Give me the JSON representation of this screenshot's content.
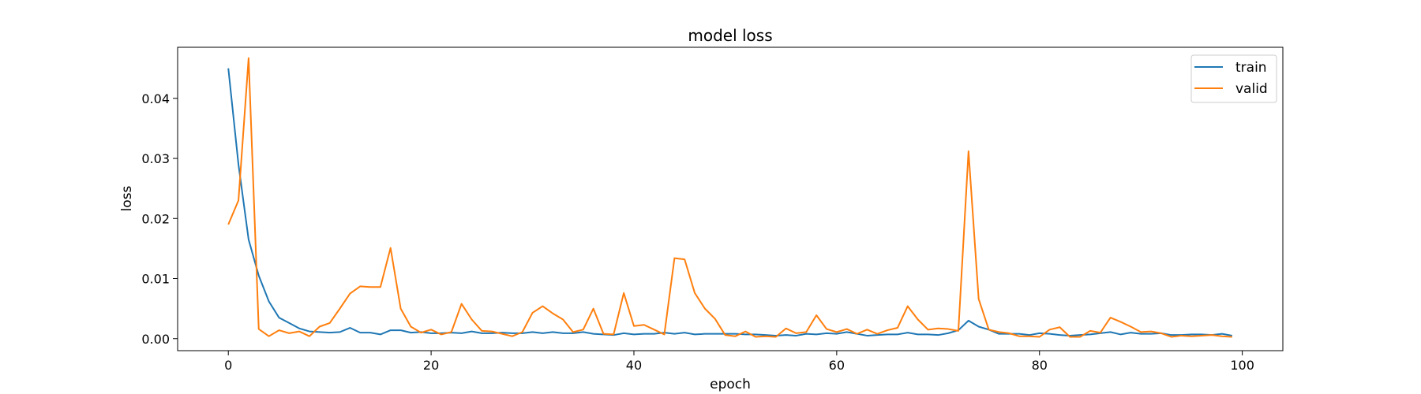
{
  "chart_data": {
    "type": "line",
    "title": "model loss",
    "xlabel": "epoch",
    "ylabel": "loss",
    "xlim": [
      -5,
      104
    ],
    "ylim": [
      -0.002,
      0.0485
    ],
    "xticks": [
      0,
      20,
      40,
      60,
      80,
      100
    ],
    "yticks": [
      0.0,
      0.01,
      0.02,
      0.03,
      0.04
    ],
    "xtick_labels": [
      "0",
      "20",
      "40",
      "60",
      "80",
      "100"
    ],
    "ytick_labels": [
      "0.00",
      "0.01",
      "0.02",
      "0.03",
      "0.04"
    ],
    "legend": {
      "position": "top-right",
      "entries": [
        "train",
        "valid"
      ]
    },
    "grid": false,
    "series": [
      {
        "name": "train",
        "color": "#1f77b4",
        "x": [
          0,
          1,
          2,
          3,
          4,
          5,
          6,
          7,
          8,
          9,
          10,
          11,
          12,
          13,
          14,
          15,
          16,
          17,
          18,
          19,
          20,
          21,
          22,
          23,
          24,
          25,
          26,
          27,
          28,
          29,
          30,
          31,
          32,
          33,
          34,
          35,
          36,
          37,
          38,
          39,
          40,
          41,
          42,
          43,
          44,
          45,
          46,
          47,
          48,
          49,
          50,
          51,
          52,
          53,
          54,
          55,
          56,
          57,
          58,
          59,
          60,
          61,
          62,
          63,
          64,
          65,
          66,
          67,
          68,
          69,
          70,
          71,
          72,
          73,
          74,
          75,
          76,
          77,
          78,
          79,
          80,
          81,
          82,
          83,
          84,
          85,
          86,
          87,
          88,
          89,
          90,
          91,
          92,
          93,
          94,
          95,
          96,
          97,
          98,
          99
        ],
        "values": [
          0.045,
          0.029,
          0.0165,
          0.0105,
          0.0062,
          0.0035,
          0.0026,
          0.0017,
          0.0012,
          0.0011,
          0.001,
          0.0011,
          0.0018,
          0.001,
          0.001,
          0.0007,
          0.0014,
          0.0014,
          0.001,
          0.0011,
          0.0009,
          0.0009,
          0.001,
          0.0009,
          0.0012,
          0.0009,
          0.0009,
          0.001,
          0.0009,
          0.0009,
          0.0011,
          0.0009,
          0.0011,
          0.0009,
          0.0009,
          0.0011,
          0.0008,
          0.0007,
          0.0006,
          0.0009,
          0.0007,
          0.0008,
          0.0008,
          0.001,
          0.0008,
          0.001,
          0.0007,
          0.0008,
          0.0008,
          0.0008,
          0.0008,
          0.0007,
          0.0007,
          0.0006,
          0.0005,
          0.0006,
          0.0005,
          0.0008,
          0.0007,
          0.0009,
          0.0008,
          0.0011,
          0.0008,
          0.0005,
          0.0006,
          0.0007,
          0.0007,
          0.001,
          0.0007,
          0.0007,
          0.0006,
          0.0009,
          0.0014,
          0.003,
          0.002,
          0.0015,
          0.0008,
          0.0008,
          0.0008,
          0.0006,
          0.0009,
          0.0008,
          0.0006,
          0.0005,
          0.0006,
          0.0007,
          0.0009,
          0.0011,
          0.0007,
          0.001,
          0.0008,
          0.0008,
          0.0009,
          0.0006,
          0.0006,
          0.0007,
          0.0007,
          0.0006,
          0.0008,
          0.0005
        ]
      },
      {
        "name": "valid",
        "color": "#ff7f0e",
        "x": [
          0,
          1,
          2,
          3,
          4,
          5,
          6,
          7,
          8,
          9,
          10,
          11,
          12,
          13,
          14,
          15,
          16,
          17,
          18,
          19,
          20,
          21,
          22,
          23,
          24,
          25,
          26,
          27,
          28,
          29,
          30,
          31,
          32,
          33,
          34,
          35,
          36,
          37,
          38,
          39,
          40,
          41,
          42,
          43,
          44,
          45,
          46,
          47,
          48,
          49,
          50,
          51,
          52,
          53,
          54,
          55,
          56,
          57,
          58,
          59,
          60,
          61,
          62,
          63,
          64,
          65,
          66,
          67,
          68,
          69,
          70,
          71,
          72,
          73,
          74,
          75,
          76,
          77,
          78,
          79,
          80,
          81,
          82,
          83,
          84,
          85,
          86,
          87,
          88,
          89,
          90,
          91,
          92,
          93,
          94,
          95,
          96,
          97,
          98,
          99
        ],
        "values": [
          0.019,
          0.023,
          0.0467,
          0.0016,
          0.0004,
          0.0014,
          0.0009,
          0.0012,
          0.0004,
          0.002,
          0.0026,
          0.005,
          0.0075,
          0.0087,
          0.0086,
          0.0086,
          0.0151,
          0.005,
          0.002,
          0.001,
          0.0015,
          0.0007,
          0.0011,
          0.0058,
          0.0032,
          0.0013,
          0.0012,
          0.0008,
          0.0004,
          0.0011,
          0.0043,
          0.0054,
          0.0042,
          0.0032,
          0.0011,
          0.0015,
          0.005,
          0.0008,
          0.0007,
          0.0076,
          0.0021,
          0.0023,
          0.0015,
          0.0007,
          0.0134,
          0.0132,
          0.0076,
          0.005,
          0.0033,
          0.0006,
          0.0004,
          0.0012,
          0.0003,
          0.0004,
          0.0003,
          0.0017,
          0.0009,
          0.0011,
          0.0039,
          0.0016,
          0.0011,
          0.0016,
          0.0008,
          0.0015,
          0.0008,
          0.0014,
          0.0018,
          0.0054,
          0.0032,
          0.0015,
          0.0017,
          0.0016,
          0.0013,
          0.0312,
          0.0066,
          0.0015,
          0.0011,
          0.0009,
          0.0004,
          0.0004,
          0.0003,
          0.0015,
          0.0019,
          0.0003,
          0.0003,
          0.0013,
          0.001,
          0.0035,
          0.0028,
          0.002,
          0.0011,
          0.0012,
          0.0009,
          0.0003,
          0.0005,
          0.0004,
          0.0005,
          0.0006,
          0.0004,
          0.0003
        ]
      }
    ]
  }
}
